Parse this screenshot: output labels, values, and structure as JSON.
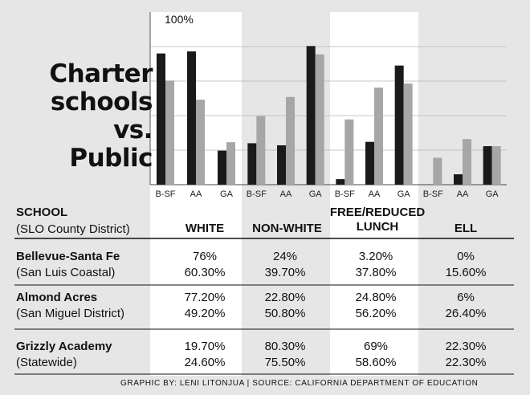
{
  "title_lines": [
    "Charter",
    "schools",
    "vs.",
    "Public"
  ],
  "chart_data": {
    "type": "bar",
    "ylim": [
      0,
      100
    ],
    "y_top_label": "100%",
    "groups": [
      "WHITE",
      "NON-WHITE",
      "FREE/REDUCED LUNCH",
      "ELL"
    ],
    "categories": [
      "B-SF",
      "AA",
      "GA"
    ],
    "series": [
      {
        "role": "school",
        "color": "#1a1a1a",
        "values": [
          [
            76,
            77.2,
            19.7
          ],
          [
            24,
            22.8,
            80.3
          ],
          [
            3.2,
            24.8,
            69
          ],
          [
            0,
            6,
            22.3
          ]
        ]
      },
      {
        "role": "district",
        "color": "#a6a6a6",
        "values": [
          [
            60.3,
            49.2,
            24.6
          ],
          [
            39.7,
            50.8,
            75.5
          ],
          [
            37.8,
            56.2,
            58.6
          ],
          [
            15.6,
            26.4,
            22.3
          ]
        ]
      }
    ],
    "grid": true
  },
  "table": {
    "header": {
      "school": "SCHOOL",
      "district": "(SLO County District)"
    },
    "columns": [
      "WHITE",
      "NON-WHITE",
      "FREE/REDUCED\nLUNCH",
      "ELL"
    ],
    "rows": [
      {
        "school": "Bellevue-Santa Fe",
        "district": "(San Luis Coastal)",
        "school_values": [
          "76%",
          "24%",
          "3.20%",
          "0%"
        ],
        "district_values": [
          "60.30%",
          "39.70%",
          "37.80%",
          "15.60%"
        ]
      },
      {
        "school": "Almond Acres",
        "district": "(San Miguel District)",
        "school_values": [
          "77.20%",
          "22.80%",
          "24.80%",
          "6%"
        ],
        "district_values": [
          "49.20%",
          "50.80%",
          "56.20%",
          "26.40%"
        ]
      },
      {
        "school": "Grizzly Academy",
        "district": "(Statewide)",
        "school_values": [
          "19.70%",
          "80.30%",
          "69%",
          "22.30%"
        ],
        "district_values": [
          "24.60%",
          "75.50%",
          "58.60%",
          "22.30%"
        ]
      }
    ]
  },
  "credit": "GRAPHIC BY: LENI LITONJUA  |  SOURCE: CALIFORNIA DEPARTMENT OF EDUCATION"
}
